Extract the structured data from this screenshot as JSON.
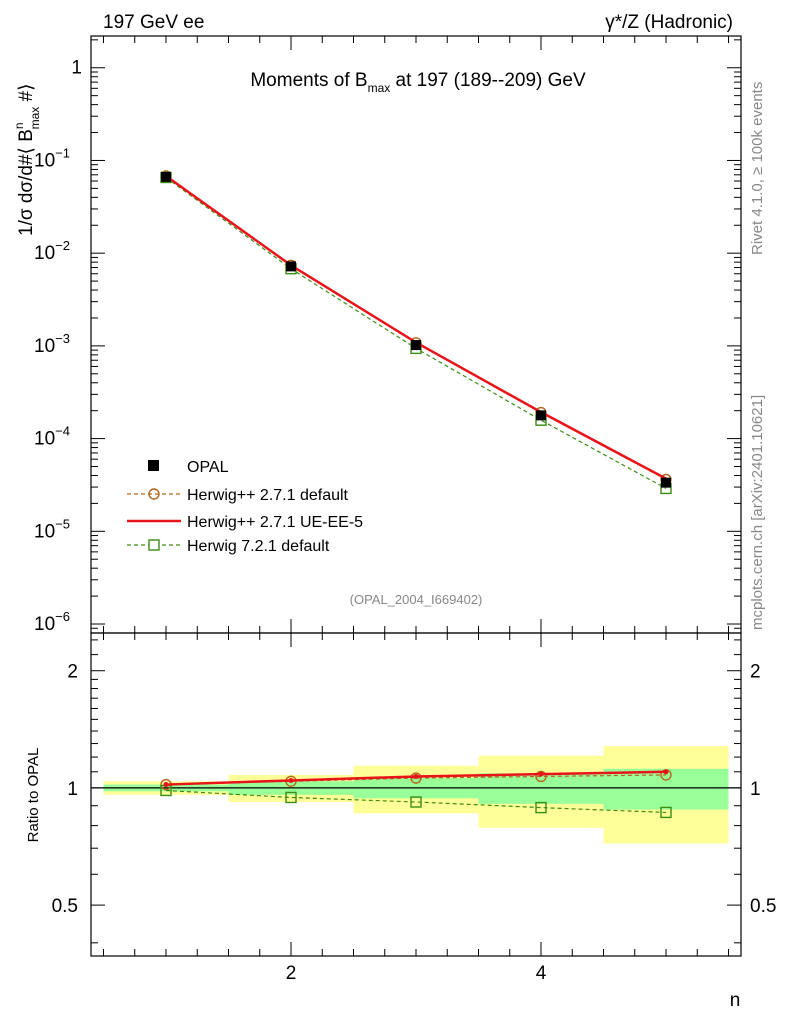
{
  "header": {
    "left": "197 GeV ee",
    "right": "γ*/Z (Hadronic)"
  },
  "side": {
    "rivet": "Rivet 4.1.0, ≥ 100k events",
    "mcplots": "mcplots.cern.ch [arXiv:2401.10621]"
  },
  "colors": {
    "opal": "#000000",
    "herwigpp_default": "#b2661a",
    "herwigpp_ueee5": "#e8141a",
    "herwig7": "#3c8c14",
    "band_inner": "#99ff99",
    "band_outer": "#ffff99"
  },
  "chart_data": [
    {
      "type": "line",
      "panel": "main",
      "title": "Moments of B_max at 197 (189--209) GeV",
      "title_parts": {
        "pre": "Moments of B",
        "sub": "max",
        "post": " at 197 (189--209) GeV"
      },
      "ylabel": "1/σ  dσ/d#⟨ B^n_max  #⟩",
      "ylabel_parts": {
        "a": "1/σ  dσ/d#⟨ B",
        "sup": "n",
        "sub": "max",
        "b": "  #⟩"
      },
      "yscale": "log",
      "ylim": [
        8e-07,
        2.2
      ],
      "xlim": [
        0.4,
        5.6
      ],
      "x": [
        1,
        2,
        3,
        4,
        5
      ],
      "y_ticks": [
        {
          "value": 1,
          "mant": "1",
          "exp": ""
        },
        {
          "value": 0.1,
          "mant": "10",
          "exp": "−1"
        },
        {
          "value": 0.01,
          "mant": "10",
          "exp": "−2"
        },
        {
          "value": 0.001,
          "mant": "10",
          "exp": "−3"
        },
        {
          "value": 0.0001,
          "mant": "10",
          "exp": "−4"
        },
        {
          "value": 1e-05,
          "mant": "10",
          "exp": "−5"
        },
        {
          "value": 1e-06,
          "mant": "10",
          "exp": "−6"
        }
      ],
      "series": [
        {
          "name": "OPAL",
          "key": "opal",
          "style": "points",
          "values": [
            0.0665,
            0.0072,
            0.00102,
            0.000178,
            3.35e-05
          ]
        },
        {
          "name": "Herwig++ 2.7.1 default",
          "key": "herwigpp_default",
          "style": "dashed-circle",
          "values": [
            0.068,
            0.0074,
            0.00108,
            0.000191,
            3.62e-05
          ]
        },
        {
          "name": "Herwig++ 2.7.1 UE-EE-5",
          "key": "herwigpp_ueee5",
          "style": "solid",
          "values": [
            0.068,
            0.0074,
            0.00109,
            0.000193,
            3.7e-05
          ]
        },
        {
          "name": "Herwig 7.2.1 default",
          "key": "herwig7",
          "style": "dashed-square",
          "values": [
            0.0655,
            0.0068,
            0.00094,
            0.000158,
            2.9e-05
          ]
        }
      ],
      "annotation": "(OPAL_2004_I669402)",
      "legend_position": "bottom-left"
    },
    {
      "type": "line",
      "panel": "ratio",
      "ylabel": "Ratio to OPAL",
      "xlabel": "n",
      "ylim": [
        0.37,
        2.5
      ],
      "yscale": "log",
      "y_ticks": [
        {
          "value": 0.5,
          "label": "0.5"
        },
        {
          "value": 1,
          "label": "1"
        },
        {
          "value": 2,
          "label": "2"
        }
      ],
      "x_ticks": [
        {
          "value": 2,
          "label": "2"
        },
        {
          "value": 4,
          "label": "4"
        }
      ],
      "bands": [
        {
          "x_low": 0.5,
          "x_high": 1.5,
          "inner": [
            0.98,
            1.02
          ],
          "outer": [
            0.96,
            1.04
          ]
        },
        {
          "x_low": 1.5,
          "x_high": 2.5,
          "inner": [
            0.96,
            1.04
          ],
          "outer": [
            0.92,
            1.08
          ]
        },
        {
          "x_low": 2.5,
          "x_high": 3.5,
          "inner": [
            0.94,
            1.06
          ],
          "outer": [
            0.86,
            1.14
          ]
        },
        {
          "x_low": 3.5,
          "x_high": 4.5,
          "inner": [
            0.91,
            1.09
          ],
          "outer": [
            0.79,
            1.21
          ]
        },
        {
          "x_low": 4.5,
          "x_high": 5.5,
          "inner": [
            0.88,
            1.12
          ],
          "outer": [
            0.72,
            1.28
          ]
        }
      ],
      "series": [
        {
          "name": "Herwig++ 2.7.1 default",
          "key": "herwigpp_default",
          "values": [
            1.02,
            1.04,
            1.06,
            1.07,
            1.08
          ]
        },
        {
          "name": "Herwig++ 2.7.1 UE-EE-5",
          "key": "herwigpp_ueee5",
          "values": [
            1.02,
            1.045,
            1.07,
            1.085,
            1.1
          ]
        },
        {
          "name": "Herwig 7.2.1 default",
          "key": "herwig7",
          "values": [
            0.985,
            0.945,
            0.92,
            0.89,
            0.865
          ]
        }
      ]
    }
  ]
}
